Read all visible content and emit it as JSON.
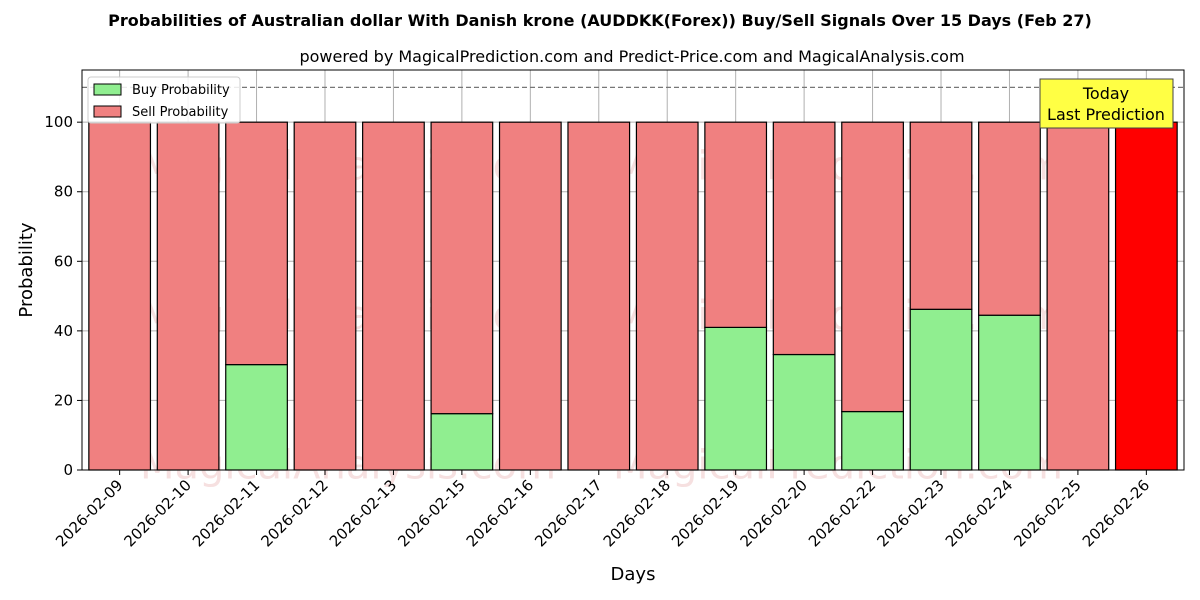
{
  "chart_data": {
    "type": "bar",
    "stacked": true,
    "title": "Probabilities of Australian dollar With Danish krone (AUDDKK(Forex)) Buy/Sell Signals Over 15 Days (Feb 27)",
    "subtitle": "powered by MagicalPrediction.com and Predict-Price.com and MagicalAnalysis.com",
    "xlabel": "Days",
    "ylabel": "Probability",
    "ylim": [
      0,
      115
    ],
    "yticks": [
      0,
      20,
      40,
      60,
      80,
      100
    ],
    "grid": true,
    "legend_position": "top-left",
    "reference_line": 110,
    "categories": [
      "2026-02-09",
      "2026-02-10",
      "2026-02-11",
      "2026-02-12",
      "2026-02-13",
      "2026-02-15",
      "2026-02-16",
      "2026-02-17",
      "2026-02-18",
      "2026-02-19",
      "2026-02-20",
      "2026-02-22",
      "2026-02-23",
      "2026-02-24",
      "2026-02-25",
      "2026-02-26"
    ],
    "series": [
      {
        "name": "Buy Probability",
        "color": "#90ee90",
        "values": [
          0,
          0,
          30.3,
          0,
          0,
          16.2,
          0,
          0,
          0,
          41.0,
          33.2,
          16.8,
          46.2,
          44.5,
          0,
          0
        ]
      },
      {
        "name": "Sell Probability",
        "color": "#f08080",
        "values": [
          100,
          100,
          69.7,
          100,
          100,
          83.8,
          100,
          100,
          100,
          59.0,
          66.8,
          83.2,
          53.8,
          55.5,
          100,
          100
        ]
      }
    ],
    "highlight": {
      "index": 15,
      "color": "#ff0000"
    },
    "annotation": {
      "lines": [
        "Today",
        "Last Prediction"
      ],
      "background": "#ffff44"
    },
    "watermarks": [
      "MagicalAnalysis.com",
      "MagicalPrediction.com"
    ]
  }
}
